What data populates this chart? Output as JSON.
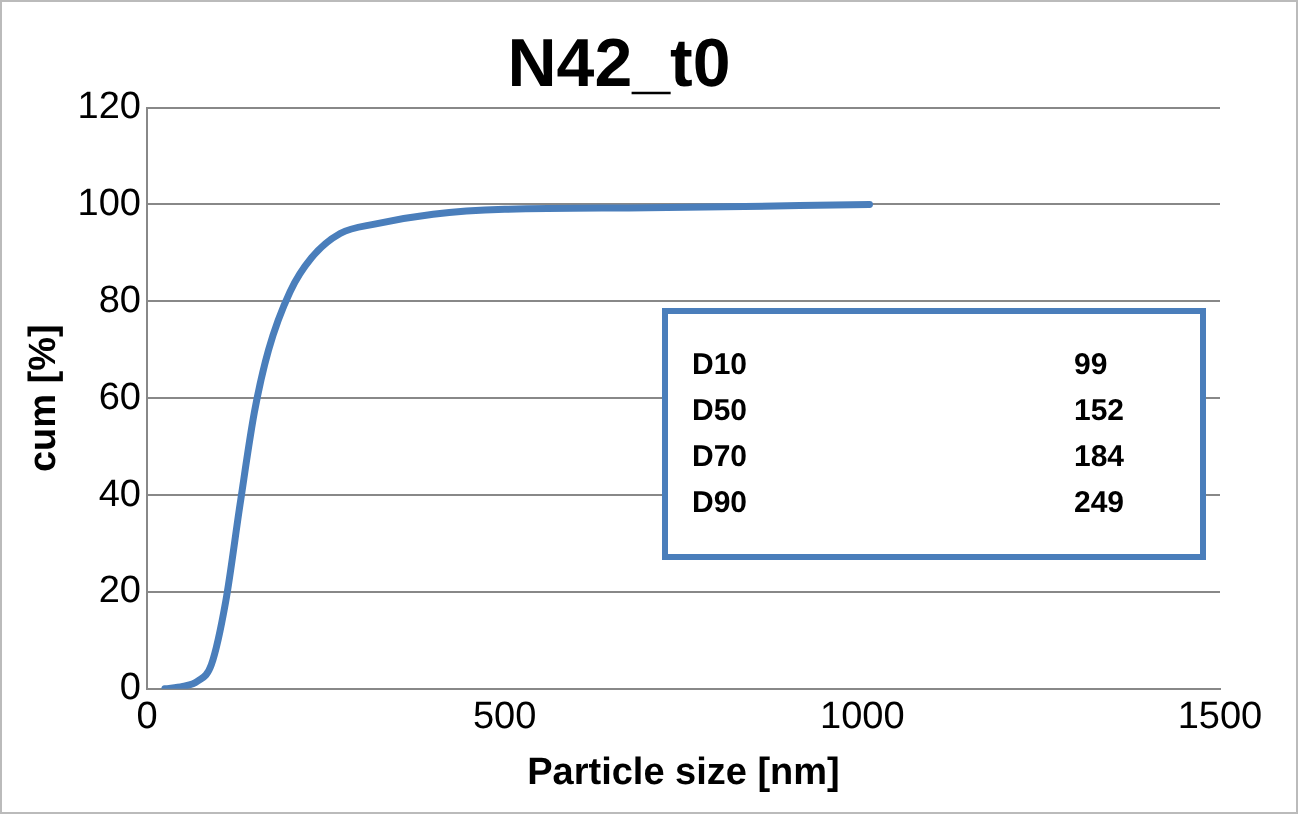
{
  "chart_data": {
    "type": "line",
    "title": "N42_t0",
    "xlabel": "Particle size [nm]",
    "ylabel": "cum [%]",
    "series": [
      {
        "color": "#4a7ebb",
        "x": [
          25,
          50,
          70,
          90,
          110,
          130,
          150,
          170,
          200,
          230,
          270,
          320,
          400,
          500,
          700,
          1010
        ],
        "values": [
          0,
          0.5,
          1.5,
          5,
          18,
          38,
          57,
          70,
          82,
          89,
          94,
          96,
          98,
          99,
          99.3,
          100
        ]
      }
    ],
    "xlim": [
      0,
      1500
    ],
    "xticks": [
      0,
      500,
      1000,
      1500
    ],
    "ylim": [
      0,
      120
    ],
    "yticks": [
      0,
      20,
      40,
      60,
      80,
      100,
      120
    ],
    "grid": "y",
    "legend": false,
    "marker": "none",
    "line_style": "solid",
    "annotations": [
      "D10",
      "99",
      "D50",
      "152",
      "D70",
      "184",
      "D90",
      "249"
    ]
  }
}
